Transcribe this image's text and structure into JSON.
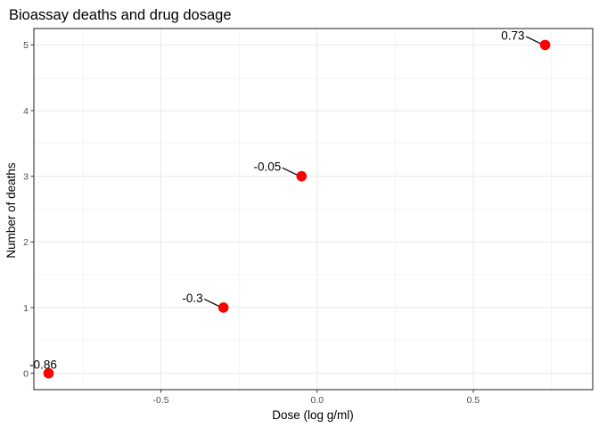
{
  "chart_data": {
    "type": "scatter",
    "title": "Bioassay deaths and drug dosage",
    "xlabel": "Dose (log g/ml)",
    "ylabel": "Number of deaths",
    "xlim": [
      -0.907,
      0.8825
    ],
    "ylim": [
      -0.25,
      5.25
    ],
    "x_ticks": [
      -0.5,
      0.0,
      0.5
    ],
    "x_tick_labels": [
      "-0.5",
      "0.0",
      "0.5"
    ],
    "y_ticks": [
      0,
      1,
      2,
      3,
      4,
      5
    ],
    "y_tick_labels": [
      "0",
      "1",
      "2",
      "3",
      "4",
      "5"
    ],
    "grid": true,
    "point_color": "#ff0000",
    "points": [
      {
        "x": -0.86,
        "y": 0,
        "label": "-0.86"
      },
      {
        "x": -0.3,
        "y": 1,
        "label": "-0.3"
      },
      {
        "x": -0.05,
        "y": 3,
        "label": "-0.05"
      },
      {
        "x": 0.73,
        "y": 5,
        "label": "0.73"
      }
    ]
  }
}
